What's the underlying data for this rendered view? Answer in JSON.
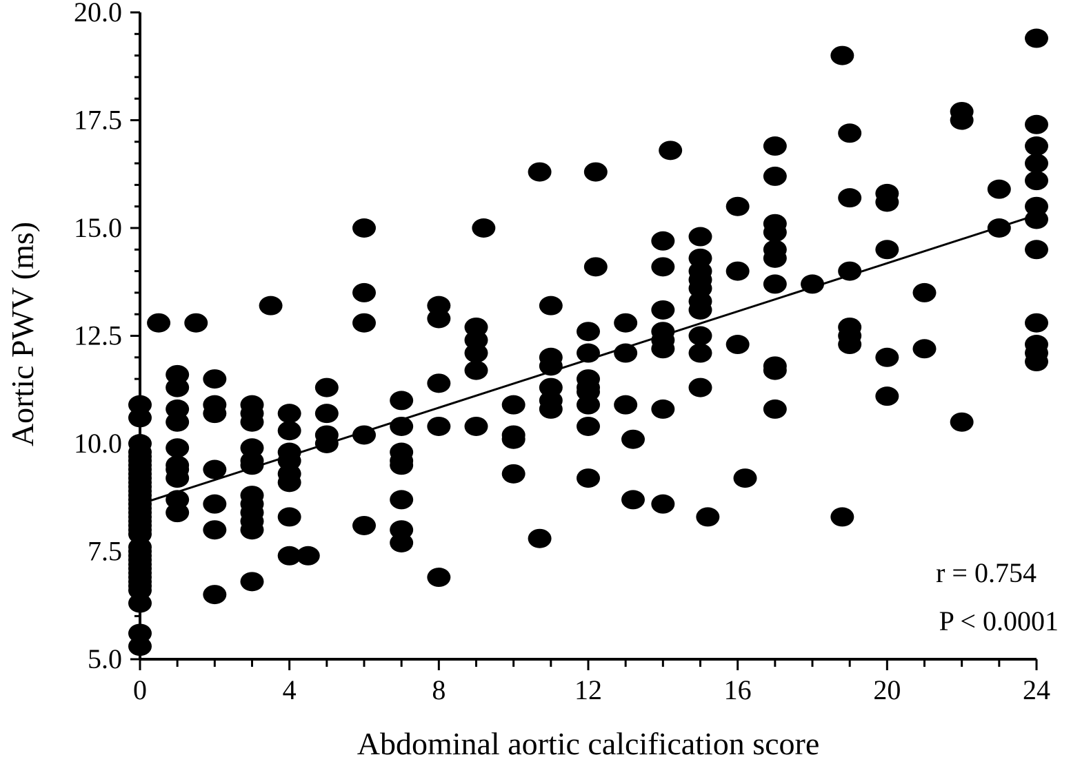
{
  "chart_data": {
    "type": "scatter",
    "title": "",
    "xlabel": "Abdominal aortic calcification score",
    "ylabel": "Aortic PWV (ms)",
    "xlim": [
      0,
      24
    ],
    "ylim": [
      5.0,
      20.0
    ],
    "x_ticks": [
      "0",
      "4",
      "8",
      "12",
      "16",
      "20",
      "24"
    ],
    "y_ticks": [
      "5.0",
      "7.5",
      "10.0",
      "12.5",
      "15.0",
      "17.5",
      "20.0"
    ],
    "grid": false,
    "legend": "none",
    "marker_color": "#000000",
    "annotations": [
      "r = 0.754",
      "P < 0.0001"
    ],
    "trend_line": {
      "x": [
        0,
        24
      ],
      "y": [
        8.6,
        15.3
      ]
    },
    "points": [
      [
        0,
        10.9
      ],
      [
        0,
        10.6
      ],
      [
        0,
        10.0
      ],
      [
        0,
        9.8
      ],
      [
        0,
        9.7
      ],
      [
        0,
        9.6
      ],
      [
        0,
        9.5
      ],
      [
        0,
        9.4
      ],
      [
        0,
        9.3
      ],
      [
        0,
        9.2
      ],
      [
        0,
        9.1
      ],
      [
        0,
        9.0
      ],
      [
        0,
        8.9
      ],
      [
        0,
        8.8
      ],
      [
        0,
        8.7
      ],
      [
        0,
        8.6
      ],
      [
        0,
        8.5
      ],
      [
        0,
        8.4
      ],
      [
        0,
        8.3
      ],
      [
        0,
        8.2
      ],
      [
        0,
        8.1
      ],
      [
        0,
        8.0
      ],
      [
        0,
        7.9
      ],
      [
        0,
        7.6
      ],
      [
        0,
        7.5
      ],
      [
        0,
        7.4
      ],
      [
        0,
        7.3
      ],
      [
        0,
        7.2
      ],
      [
        0,
        7.1
      ],
      [
        0,
        7.0
      ],
      [
        0,
        6.9
      ],
      [
        0,
        6.8
      ],
      [
        0,
        6.7
      ],
      [
        0,
        6.6
      ],
      [
        0,
        6.3
      ],
      [
        0,
        5.6
      ],
      [
        0,
        5.3
      ],
      [
        0.5,
        12.8
      ],
      [
        1.5,
        12.8
      ],
      [
        1,
        11.6
      ],
      [
        1,
        11.3
      ],
      [
        1,
        10.8
      ],
      [
        1,
        10.5
      ],
      [
        1,
        9.9
      ],
      [
        1,
        9.5
      ],
      [
        1,
        9.4
      ],
      [
        1,
        9.2
      ],
      [
        1,
        8.7
      ],
      [
        1,
        8.4
      ],
      [
        2,
        11.5
      ],
      [
        2,
        10.9
      ],
      [
        2,
        10.7
      ],
      [
        2,
        9.4
      ],
      [
        2,
        8.6
      ],
      [
        2,
        8.0
      ],
      [
        2,
        6.5
      ],
      [
        3,
        10.9
      ],
      [
        3,
        10.7
      ],
      [
        3,
        10.5
      ],
      [
        3,
        9.9
      ],
      [
        3,
        9.6
      ],
      [
        3,
        9.5
      ],
      [
        3,
        8.8
      ],
      [
        3,
        8.6
      ],
      [
        3,
        8.4
      ],
      [
        3,
        8.2
      ],
      [
        3,
        8.0
      ],
      [
        3,
        6.8
      ],
      [
        3.5,
        13.2
      ],
      [
        4,
        10.7
      ],
      [
        4,
        10.3
      ],
      [
        4,
        9.8
      ],
      [
        4,
        9.6
      ],
      [
        4,
        9.3
      ],
      [
        4,
        9.1
      ],
      [
        4,
        8.3
      ],
      [
        4,
        7.4
      ],
      [
        4.5,
        7.4
      ],
      [
        5,
        11.3
      ],
      [
        5,
        10.7
      ],
      [
        5,
        10.2
      ],
      [
        5,
        10.0
      ],
      [
        6,
        15.0
      ],
      [
        6,
        13.5
      ],
      [
        6,
        12.8
      ],
      [
        6,
        10.2
      ],
      [
        6,
        8.1
      ],
      [
        7,
        11.0
      ],
      [
        7,
        10.4
      ],
      [
        7,
        9.8
      ],
      [
        7,
        9.6
      ],
      [
        7,
        9.5
      ],
      [
        7,
        8.7
      ],
      [
        7,
        8.0
      ],
      [
        7,
        7.7
      ],
      [
        8,
        13.2
      ],
      [
        8,
        12.9
      ],
      [
        8,
        11.4
      ],
      [
        8,
        10.4
      ],
      [
        8,
        6.9
      ],
      [
        9,
        12.7
      ],
      [
        9,
        12.4
      ],
      [
        9,
        12.1
      ],
      [
        9,
        11.7
      ],
      [
        9,
        10.4
      ],
      [
        9.2,
        15.0
      ],
      [
        10,
        10.9
      ],
      [
        10,
        10.2
      ],
      [
        10,
        10.1
      ],
      [
        10,
        9.3
      ],
      [
        10.7,
        16.3
      ],
      [
        10.7,
        7.8
      ],
      [
        11,
        13.2
      ],
      [
        11,
        12.0
      ],
      [
        11,
        11.8
      ],
      [
        11,
        11.3
      ],
      [
        11,
        11.0
      ],
      [
        11,
        10.8
      ],
      [
        12,
        12.6
      ],
      [
        12,
        12.1
      ],
      [
        12,
        11.5
      ],
      [
        12,
        11.3
      ],
      [
        12,
        11.2
      ],
      [
        12,
        10.9
      ],
      [
        12,
        10.4
      ],
      [
        12,
        9.2
      ],
      [
        12.2,
        16.3
      ],
      [
        12.2,
        14.1
      ],
      [
        13,
        12.8
      ],
      [
        13,
        12.1
      ],
      [
        13,
        10.9
      ],
      [
        13.2,
        10.1
      ],
      [
        13.2,
        8.7
      ],
      [
        14,
        14.7
      ],
      [
        14,
        14.1
      ],
      [
        14,
        13.1
      ],
      [
        14,
        12.6
      ],
      [
        14,
        12.4
      ],
      [
        14,
        12.2
      ],
      [
        14,
        10.8
      ],
      [
        14,
        8.6
      ],
      [
        14.2,
        16.8
      ],
      [
        15,
        14.8
      ],
      [
        15,
        14.3
      ],
      [
        15,
        14.0
      ],
      [
        15,
        13.8
      ],
      [
        15,
        13.6
      ],
      [
        15,
        13.3
      ],
      [
        15,
        13.1
      ],
      [
        15,
        12.5
      ],
      [
        15,
        12.1
      ],
      [
        15,
        11.3
      ],
      [
        15.2,
        8.3
      ],
      [
        16,
        15.5
      ],
      [
        16,
        14.0
      ],
      [
        16,
        12.3
      ],
      [
        16.2,
        9.2
      ],
      [
        17,
        16.9
      ],
      [
        17,
        16.2
      ],
      [
        17,
        15.1
      ],
      [
        17,
        14.9
      ],
      [
        17,
        14.5
      ],
      [
        17,
        14.3
      ],
      [
        17,
        13.7
      ],
      [
        17,
        11.8
      ],
      [
        17,
        11.7
      ],
      [
        17,
        10.8
      ],
      [
        18,
        13.7
      ],
      [
        18.8,
        19.0
      ],
      [
        18.8,
        8.3
      ],
      [
        19,
        17.2
      ],
      [
        19,
        15.7
      ],
      [
        19,
        14.0
      ],
      [
        19,
        12.7
      ],
      [
        19,
        12.5
      ],
      [
        19,
        12.3
      ],
      [
        20,
        15.8
      ],
      [
        20,
        15.6
      ],
      [
        20,
        14.5
      ],
      [
        20,
        12.0
      ],
      [
        20,
        11.1
      ],
      [
        21,
        13.5
      ],
      [
        21,
        12.2
      ],
      [
        22,
        17.7
      ],
      [
        22,
        17.5
      ],
      [
        22,
        10.5
      ],
      [
        23,
        15.9
      ],
      [
        23,
        15.0
      ],
      [
        24,
        19.4
      ],
      [
        24,
        17.4
      ],
      [
        24,
        16.9
      ],
      [
        24,
        16.5
      ],
      [
        24,
        16.1
      ],
      [
        24,
        15.5
      ],
      [
        24,
        15.2
      ],
      [
        24,
        14.5
      ],
      [
        24,
        12.8
      ],
      [
        24,
        12.3
      ],
      [
        24,
        12.1
      ],
      [
        24,
        11.9
      ]
    ]
  }
}
